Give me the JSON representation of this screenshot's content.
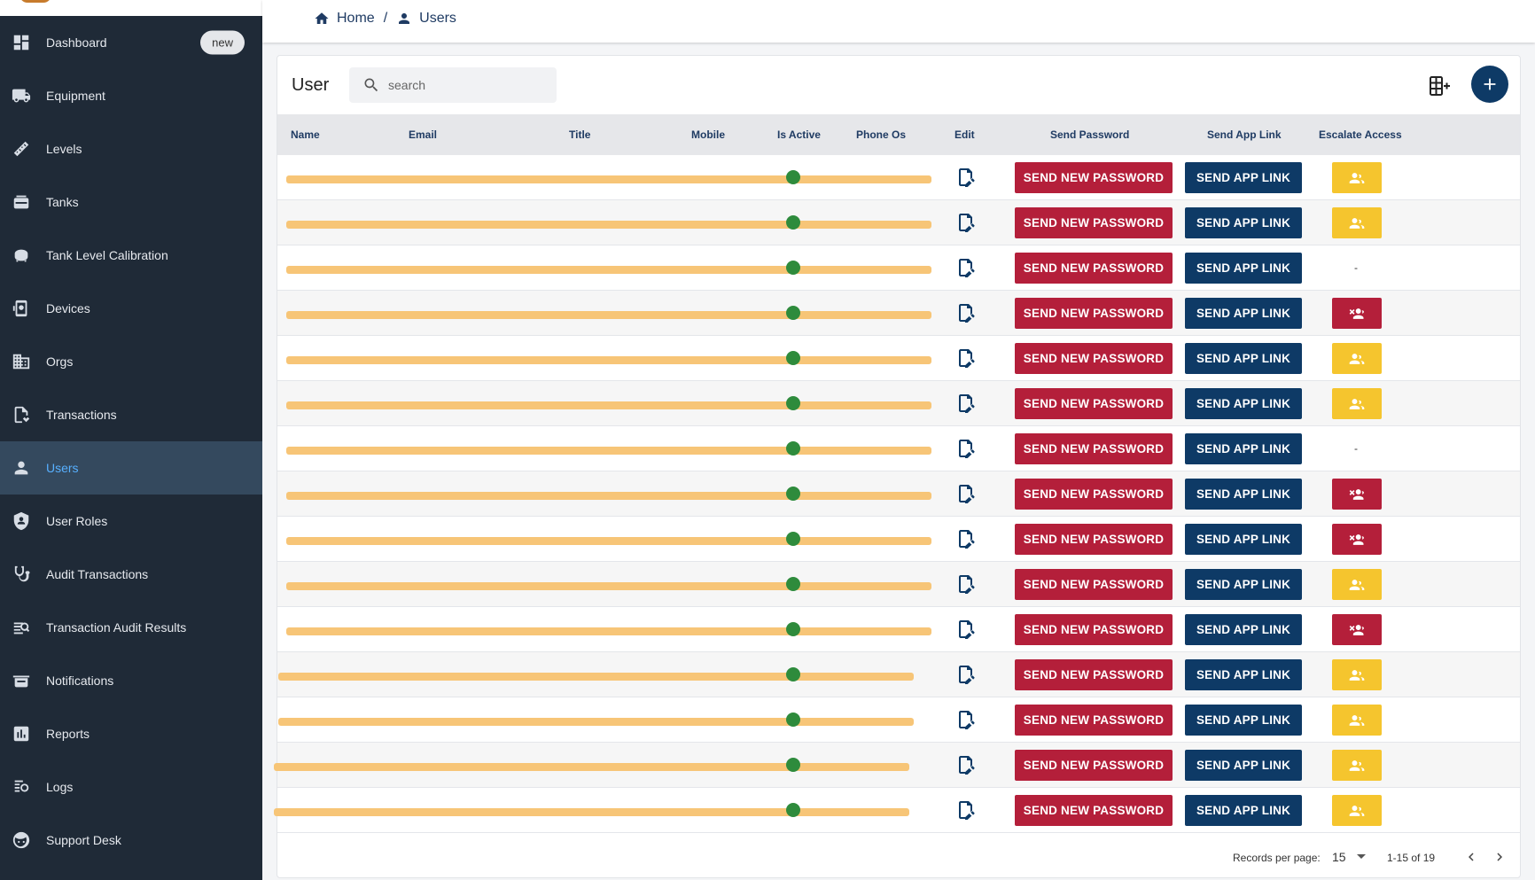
{
  "sidebar": {
    "items": [
      {
        "label": "Dashboard",
        "icon": "dashboard-icon",
        "badge": "new"
      },
      {
        "label": "Equipment",
        "icon": "truck-icon"
      },
      {
        "label": "Levels",
        "icon": "ruler-icon"
      },
      {
        "label": "Tanks",
        "icon": "tank-icon"
      },
      {
        "label": "Tank Level Calibration",
        "icon": "calibration-icon"
      },
      {
        "label": "Devices",
        "icon": "device-icon"
      },
      {
        "label": "Orgs",
        "icon": "building-icon"
      },
      {
        "label": "Transactions",
        "icon": "document-icon"
      },
      {
        "label": "Users",
        "icon": "person-icon",
        "active": true
      },
      {
        "label": "User Roles",
        "icon": "shield-icon"
      },
      {
        "label": "Audit Transactions",
        "icon": "stethoscope-icon"
      },
      {
        "label": "Transaction Audit Results",
        "icon": "audit-results-icon"
      },
      {
        "label": "Notifications",
        "icon": "notifications-icon"
      },
      {
        "label": "Reports",
        "icon": "chart-icon"
      },
      {
        "label": "Logs",
        "icon": "logs-icon"
      },
      {
        "label": "Support Desk",
        "icon": "support-icon"
      }
    ]
  },
  "breadcrumb": {
    "home": "Home",
    "separator": "/",
    "current": "Users"
  },
  "card": {
    "title": "User",
    "search_placeholder": "search"
  },
  "table": {
    "columns": [
      "Name",
      "Email",
      "Title",
      "Mobile",
      "Is Active",
      "Phone Os",
      "Edit",
      "Send Password",
      "Send App Link",
      "Escalate Access"
    ],
    "send_password_label": "SEND NEW PASSWORD",
    "send_app_link_label": "SEND APP LINK",
    "rows": [
      {
        "escalate": "grant"
      },
      {
        "escalate": "grant"
      },
      {
        "escalate": "none"
      },
      {
        "escalate": "revoke"
      },
      {
        "escalate": "grant"
      },
      {
        "escalate": "grant"
      },
      {
        "escalate": "none"
      },
      {
        "escalate": "revoke"
      },
      {
        "escalate": "revoke"
      },
      {
        "escalate": "grant"
      },
      {
        "escalate": "revoke"
      },
      {
        "escalate": "grant"
      },
      {
        "escalate": "grant"
      },
      {
        "escalate": "grant"
      },
      {
        "escalate": "grant"
      }
    ],
    "escalate_none_text": "-"
  },
  "pagination": {
    "records_per_page_label": "Records per page:",
    "records_per_page": "15",
    "range": "1-15 of 19"
  },
  "colors": {
    "sidebar_bg": "#1f2a37",
    "primary": "#0e3a66",
    "danger": "#b41f3a",
    "warning": "#f5c52e",
    "active_text": "#57b0ff"
  }
}
